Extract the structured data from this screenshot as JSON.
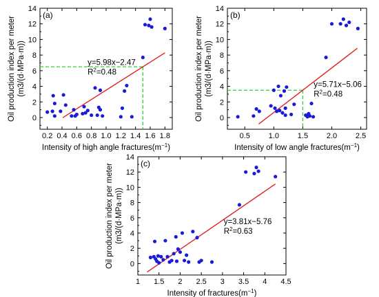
{
  "chart_data": [
    {
      "panel": "(a)",
      "type": "scatter",
      "xlabel": "Intensity of high angle fractures(m",
      "xlabel_unit_sup": "−1",
      "xlabel_close": ")",
      "ylabel_line1": "Oil production index per meter",
      "ylabel_line2": "(m3/(d·MPa·m))",
      "xlim": [
        0.1,
        1.9
      ],
      "ylim": [
        -1.5,
        14
      ],
      "xticks": [
        "0.2",
        "0.4",
        "0.6",
        "0.8",
        "1.0",
        "1.2",
        "1.4",
        "1.6",
        "1.8"
      ],
      "yticks": [
        "0",
        "2",
        "4",
        "6",
        "8",
        "10",
        "12",
        "14"
      ],
      "equation": "y=5.98x−2.47",
      "r2_label": "R",
      "r2_value": "=0.48",
      "fit": {
        "slope": 5.98,
        "intercept": -2.47,
        "x_start": 0.41,
        "x_end": 1.8
      },
      "guide": {
        "x": 1.5,
        "y": 6.5
      },
      "color_points": "#1a1adb",
      "color_fit": "#e02020",
      "color_guide": "#33cc33",
      "points": [
        [
          0.2,
          0.7
        ],
        [
          0.27,
          0.8
        ],
        [
          0.28,
          2.8
        ],
        [
          0.3,
          1.8
        ],
        [
          0.3,
          0.2
        ],
        [
          0.38,
          0.8
        ],
        [
          0.42,
          2.9
        ],
        [
          0.45,
          1.6
        ],
        [
          0.53,
          0.2
        ],
        [
          0.56,
          1.0
        ],
        [
          0.58,
          0.2
        ],
        [
          0.6,
          0.4
        ],
        [
          0.68,
          0.5
        ],
        [
          0.7,
          1.4
        ],
        [
          0.72,
          0.6
        ],
        [
          0.75,
          0.9
        ],
        [
          0.8,
          0.3
        ],
        [
          0.85,
          3.8
        ],
        [
          0.88,
          0.3
        ],
        [
          0.9,
          1.3
        ],
        [
          0.92,
          3.5
        ],
        [
          0.92,
          1.0
        ],
        [
          0.95,
          0.2
        ],
        [
          1.2,
          0.1
        ],
        [
          1.22,
          1.2
        ],
        [
          1.25,
          3.4
        ],
        [
          1.28,
          4.1
        ],
        [
          1.35,
          0.1
        ],
        [
          1.5,
          7.7
        ],
        [
          1.53,
          11.9
        ],
        [
          1.58,
          11.8
        ],
        [
          1.6,
          12.6
        ],
        [
          1.62,
          11.6
        ],
        [
          1.8,
          11.4
        ]
      ]
    },
    {
      "panel": "(b)",
      "type": "scatter",
      "xlabel": "Intensity of low angle fractures(m",
      "xlabel_unit_sup": "−1",
      "xlabel_close": ")",
      "ylabel_line1": "Oil production index per meter",
      "ylabel_line2": "(m3/(d·MPa·m))",
      "xlim": [
        0.2,
        2.6
      ],
      "ylim": [
        -1.5,
        14
      ],
      "xticks": [
        "0.5",
        "1.0",
        "1.5",
        "2.0",
        "2.5"
      ],
      "yticks": [
        "0",
        "2",
        "4",
        "6",
        "8",
        "10",
        "12",
        "14"
      ],
      "equation": "y=5.71x−5.06",
      "r2_label": "R",
      "r2_value": "=0.48",
      "fit": {
        "slope": 5.71,
        "intercept": -5.06,
        "x_start": 0.74,
        "x_end": 2.44
      },
      "guide": {
        "x": 1.5,
        "y": 3.5
      },
      "color_points": "#1a1adb",
      "color_fit": "#e02020",
      "color_guide": "#33cc33",
      "points": [
        [
          0.38,
          0.1
        ],
        [
          0.65,
          0.2
        ],
        [
          0.7,
          1.1
        ],
        [
          0.75,
          0.8
        ],
        [
          0.95,
          1.5
        ],
        [
          1.0,
          3.5
        ],
        [
          1.02,
          1.2
        ],
        [
          1.05,
          0.8
        ],
        [
          1.08,
          4.0
        ],
        [
          1.1,
          0.9
        ],
        [
          1.12,
          2.8
        ],
        [
          1.15,
          0.6
        ],
        [
          1.18,
          3.4
        ],
        [
          1.2,
          1.2
        ],
        [
          1.2,
          0.3
        ],
        [
          1.22,
          3.9
        ],
        [
          1.3,
          0.4
        ],
        [
          1.35,
          1.7
        ],
        [
          1.55,
          0.3
        ],
        [
          1.58,
          0.1
        ],
        [
          1.6,
          0.5
        ],
        [
          1.62,
          0.2
        ],
        [
          1.65,
          1.8
        ],
        [
          1.68,
          0.1
        ],
        [
          1.9,
          7.7
        ],
        [
          2.0,
          12.0
        ],
        [
          2.15,
          12.0
        ],
        [
          2.2,
          12.6
        ],
        [
          2.25,
          11.8
        ],
        [
          2.3,
          12.2
        ],
        [
          2.45,
          11.4
        ]
      ]
    },
    {
      "panel": "(c)",
      "type": "scatter",
      "xlabel": "Intensity of fractures(m",
      "xlabel_unit_sup": "−1",
      "xlabel_close": ")",
      "ylabel_line1": "Oil production index per meter",
      "ylabel_line2": "(m3/(d·MPa·m))",
      "xlim": [
        1.0,
        4.5
      ],
      "ylim": [
        -1.5,
        14
      ],
      "xticks": [
        "1",
        "1.5",
        "2",
        "2.5",
        "3",
        "3.5",
        "4",
        "4.5"
      ],
      "yticks": [
        "0",
        "2",
        "4",
        "6",
        "8",
        "10",
        "12",
        "14"
      ],
      "equation": "y=3.81x−5.76",
      "r2_label": "R",
      "r2_value": "=0.63",
      "fit": {
        "slope": 3.81,
        "intercept": -5.76,
        "x_start": 1.22,
        "x_end": 4.25
      },
      "color_points": "#1a1adb",
      "color_fit": "#e02020",
      "points": [
        [
          1.3,
          0.8
        ],
        [
          1.38,
          0.9
        ],
        [
          1.4,
          2.9
        ],
        [
          1.42,
          0.6
        ],
        [
          1.45,
          0.3
        ],
        [
          1.48,
          1.0
        ],
        [
          1.5,
          0.1
        ],
        [
          1.55,
          0.9
        ],
        [
          1.6,
          0.5
        ],
        [
          1.65,
          3.0
        ],
        [
          1.7,
          0.9
        ],
        [
          1.75,
          0.2
        ],
        [
          1.8,
          0.4
        ],
        [
          1.85,
          1.3
        ],
        [
          1.9,
          3.5
        ],
        [
          1.92,
          0.3
        ],
        [
          1.95,
          1.9
        ],
        [
          2.0,
          1.5
        ],
        [
          2.05,
          4.0
        ],
        [
          2.1,
          0.4
        ],
        [
          2.15,
          1.1
        ],
        [
          2.2,
          0.2
        ],
        [
          2.3,
          4.2
        ],
        [
          2.4,
          3.4
        ],
        [
          2.45,
          0.2
        ],
        [
          2.5,
          0.4
        ],
        [
          2.75,
          0.2
        ],
        [
          3.4,
          7.7
        ],
        [
          3.55,
          12.0
        ],
        [
          3.75,
          11.8
        ],
        [
          3.8,
          12.6
        ],
        [
          3.85,
          12.1
        ],
        [
          4.25,
          11.4
        ]
      ]
    }
  ]
}
